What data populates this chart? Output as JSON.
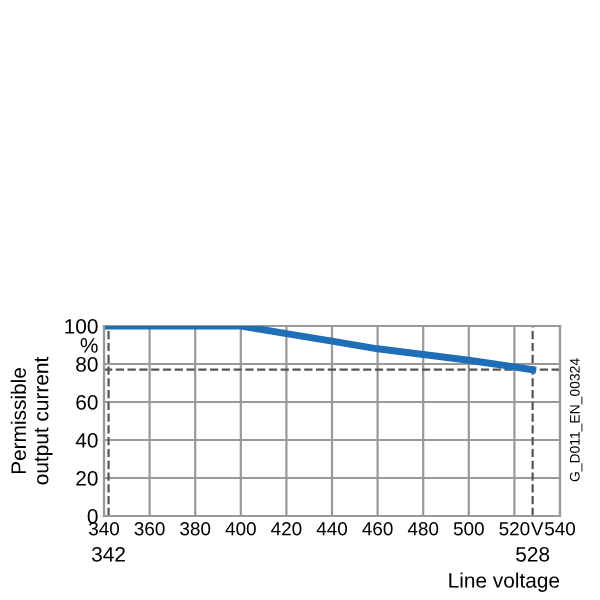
{
  "chart_data": {
    "type": "line",
    "xlabel": "Line voltage",
    "ylabel": "Permissible\noutput current",
    "x": [
      342,
      400,
      420,
      440,
      460,
      480,
      500,
      528
    ],
    "series": [
      {
        "color": "#1f6fb8",
        "values": [
          100,
          100,
          96,
          92,
          88,
          85,
          82,
          77
        ]
      }
    ],
    "xlim": [
      340,
      540
    ],
    "xticks": [
      340,
      360,
      380,
      400,
      420,
      440,
      460,
      480,
      500,
      520,
      {
        "value": 530,
        "label": "V"
      },
      540
    ],
    "ylim": [
      0,
      100
    ],
    "yticks": [
      0,
      20,
      40,
      60,
      80,
      {
        "value": 90,
        "label": "%"
      },
      100
    ],
    "grid": true,
    "marker": "none",
    "line_style": "solid",
    "ref_lines": [
      {
        "axis": "x",
        "value": 342,
        "label": "342",
        "color": "#555555",
        "line_style": "dashed"
      },
      {
        "axis": "x",
        "value": 528,
        "label": "528",
        "color": "#555555",
        "line_style": "dashed"
      },
      {
        "axis": "y",
        "value": 77,
        "color": "#555555",
        "line_style": "dashed"
      }
    ],
    "annotations": [
      "G_D011_EN_00324"
    ]
  }
}
